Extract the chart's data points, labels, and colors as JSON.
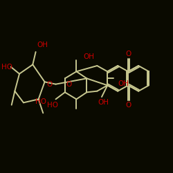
{
  "bg_color": "#0a0a00",
  "bond_color": "#c8c890",
  "oxygen_color": "#cc0000",
  "fig_w": 2.5,
  "fig_h": 2.5,
  "dpi": 100,
  "lw": 1.4,
  "fs": 7.5,
  "atoms": {
    "labels": [
      "OH",
      "HO",
      "O",
      "O",
      "OH",
      "O",
      "HO",
      "HO",
      "OH",
      "O"
    ],
    "x": [
      0.285,
      0.09,
      0.245,
      0.365,
      0.495,
      0.64,
      0.085,
      0.145,
      0.44,
      0.625
    ],
    "y": [
      0.73,
      0.68,
      0.495,
      0.495,
      0.495,
      0.495,
      0.285,
      0.285,
      0.285,
      0.285
    ]
  }
}
